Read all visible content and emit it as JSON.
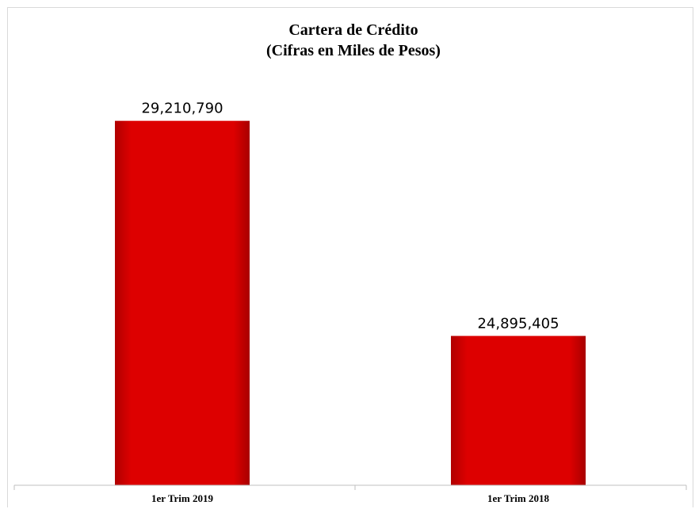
{
  "chart_data": {
    "type": "bar",
    "title": "Cartera de Crédito",
    "subtitle": "(Cifras en Miles de Pesos)",
    "categories": [
      "1er Trim 2019",
      "1er Trim 2018"
    ],
    "values": [
      29210790,
      24895405
    ],
    "data_labels": [
      "29,210,790",
      "24,895,405"
    ],
    "ylim": [
      21900000,
      31000000
    ],
    "grid": false,
    "legend": "none",
    "bar_color": "#d40000"
  }
}
